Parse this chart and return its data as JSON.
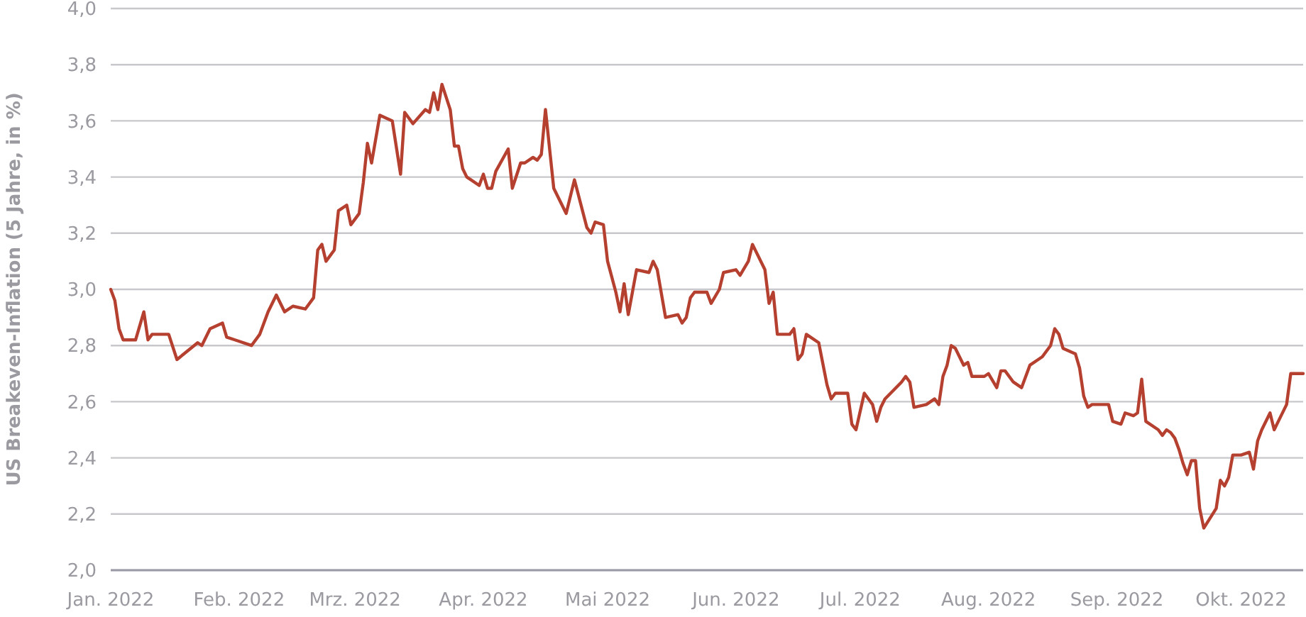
{
  "chart_data": {
    "type": "line",
    "ylabel": "US Breakeven-Inflation (5 Jahre, in %)",
    "grid": "y",
    "marker": "none",
    "line_style": "solid",
    "xlim": [
      "2022-01-01",
      "2022-10-16"
    ],
    "xticks": [
      {
        "value": "2022-01-01",
        "label": "Jan. 2022"
      },
      {
        "value": "2022-02-01",
        "label": "Feb. 2022"
      },
      {
        "value": "2022-03-01",
        "label": "Mrz. 2022"
      },
      {
        "value": "2022-04-01",
        "label": "Apr. 2022"
      },
      {
        "value": "2022-05-01",
        "label": "Mai 2022"
      },
      {
        "value": "2022-06-01",
        "label": "Jun. 2022"
      },
      {
        "value": "2022-07-01",
        "label": "Jul. 2022"
      },
      {
        "value": "2022-08-01",
        "label": "Aug. 2022"
      },
      {
        "value": "2022-09-01",
        "label": "Sep. 2022"
      },
      {
        "value": "2022-10-01",
        "label": "Okt. 2022"
      }
    ],
    "ylim": [
      2,
      4
    ],
    "yticks": [
      {
        "value": 2,
        "label": "2,0"
      },
      {
        "value": 2.2,
        "label": "2,2"
      },
      {
        "value": 2.4,
        "label": "2,4"
      },
      {
        "value": 2.6,
        "label": "2,6"
      },
      {
        "value": 2.8,
        "label": "2,8"
      },
      {
        "value": 3,
        "label": "3,0"
      },
      {
        "value": 3.2,
        "label": "3,2"
      },
      {
        "value": 3.4,
        "label": "3,4"
      },
      {
        "value": 3.6,
        "label": "3,6"
      },
      {
        "value": 3.8,
        "label": "3,8"
      },
      {
        "value": 4,
        "label": "4,0"
      }
    ],
    "x": [
      "2022-01-01",
      "2022-01-02",
      "2022-01-03",
      "2022-01-04",
      "2022-01-07",
      "2022-01-09",
      "2022-01-10",
      "2022-01-11",
      "2022-01-15",
      "2022-01-17",
      "2022-01-22",
      "2022-01-23",
      "2022-01-25",
      "2022-01-28",
      "2022-01-29",
      "2022-01-31",
      "2022-02-04",
      "2022-02-06",
      "2022-02-08",
      "2022-02-10",
      "2022-02-12",
      "2022-02-14",
      "2022-02-17",
      "2022-02-19",
      "2022-02-20",
      "2022-02-21",
      "2022-02-22",
      "2022-02-24",
      "2022-02-25",
      "2022-02-27",
      "2022-02-28",
      "2022-03-02",
      "2022-03-03",
      "2022-03-04",
      "2022-03-05",
      "2022-03-07",
      "2022-03-10",
      "2022-03-12",
      "2022-03-13",
      "2022-03-15",
      "2022-03-18",
      "2022-03-19",
      "2022-03-20",
      "2022-03-21",
      "2022-03-22",
      "2022-03-24",
      "2022-03-25",
      "2022-03-26",
      "2022-03-27",
      "2022-03-28",
      "2022-03-31",
      "2022-04-01",
      "2022-04-02",
      "2022-04-03",
      "2022-04-04",
      "2022-04-07",
      "2022-04-08",
      "2022-04-10",
      "2022-04-11",
      "2022-04-13",
      "2022-04-14",
      "2022-04-15",
      "2022-04-16",
      "2022-04-18",
      "2022-04-21",
      "2022-04-23",
      "2022-04-26",
      "2022-04-27",
      "2022-04-28",
      "2022-04-30",
      "2022-05-01",
      "2022-05-03",
      "2022-05-04",
      "2022-05-05",
      "2022-05-06",
      "2022-05-08",
      "2022-05-11",
      "2022-05-12",
      "2022-05-13",
      "2022-05-15",
      "2022-05-18",
      "2022-05-19",
      "2022-05-20",
      "2022-05-21",
      "2022-05-22",
      "2022-05-25",
      "2022-05-26",
      "2022-05-28",
      "2022-05-29",
      "2022-06-01",
      "2022-06-02",
      "2022-06-04",
      "2022-06-05",
      "2022-06-08",
      "2022-06-09",
      "2022-06-10",
      "2022-06-11",
      "2022-06-14",
      "2022-06-15",
      "2022-06-16",
      "2022-06-17",
      "2022-06-18",
      "2022-06-21",
      "2022-06-23",
      "2022-06-24",
      "2022-06-25",
      "2022-06-28",
      "2022-06-29",
      "2022-06-30",
      "2022-07-02",
      "2022-07-04",
      "2022-07-05",
      "2022-07-06",
      "2022-07-07",
      "2022-07-11",
      "2022-07-12",
      "2022-07-13",
      "2022-07-14",
      "2022-07-17",
      "2022-07-19",
      "2022-07-20",
      "2022-07-21",
      "2022-07-22",
      "2022-07-23",
      "2022-07-24",
      "2022-07-26",
      "2022-07-27",
      "2022-07-28",
      "2022-07-31",
      "2022-08-01",
      "2022-08-03",
      "2022-08-04",
      "2022-08-05",
      "2022-08-07",
      "2022-08-09",
      "2022-08-11",
      "2022-08-13",
      "2022-08-14",
      "2022-08-16",
      "2022-08-17",
      "2022-08-18",
      "2022-08-19",
      "2022-08-22",
      "2022-08-23",
      "2022-08-24",
      "2022-08-25",
      "2022-08-26",
      "2022-08-30",
      "2022-08-31",
      "2022-09-02",
      "2022-09-03",
      "2022-09-05",
      "2022-09-06",
      "2022-09-07",
      "2022-09-08",
      "2022-09-11",
      "2022-09-12",
      "2022-09-13",
      "2022-09-14",
      "2022-09-15",
      "2022-09-16",
      "2022-09-17",
      "2022-09-18",
      "2022-09-19",
      "2022-09-20",
      "2022-09-21",
      "2022-09-22",
      "2022-09-25",
      "2022-09-26",
      "2022-09-27",
      "2022-09-28",
      "2022-09-29",
      "2022-10-01",
      "2022-10-03",
      "2022-10-04",
      "2022-10-05",
      "2022-10-06",
      "2022-10-08",
      "2022-10-09",
      "2022-10-10",
      "2022-10-12",
      "2022-10-13",
      "2022-10-16"
    ],
    "series": [
      {
        "color": "#b5402f",
        "values": [
          3.0,
          2.96,
          2.86,
          2.82,
          2.82,
          2.92,
          2.82,
          2.84,
          2.84,
          2.75,
          2.81,
          2.8,
          2.86,
          2.88,
          2.83,
          2.82,
          2.8,
          2.84,
          2.92,
          2.98,
          2.92,
          2.94,
          2.93,
          2.97,
          3.14,
          3.16,
          3.1,
          3.14,
          3.28,
          3.3,
          3.23,
          3.27,
          3.38,
          3.52,
          3.45,
          3.62,
          3.6,
          3.41,
          3.63,
          3.59,
          3.64,
          3.63,
          3.7,
          3.64,
          3.73,
          3.64,
          3.51,
          3.51,
          3.43,
          3.4,
          3.37,
          3.41,
          3.36,
          3.36,
          3.42,
          3.5,
          3.36,
          3.45,
          3.45,
          3.47,
          3.46,
          3.48,
          3.64,
          3.36,
          3.27,
          3.39,
          3.22,
          3.2,
          3.24,
          3.23,
          3.1,
          2.99,
          2.92,
          3.02,
          2.91,
          3.07,
          3.06,
          3.1,
          3.07,
          2.9,
          2.91,
          2.88,
          2.9,
          2.97,
          2.99,
          2.99,
          2.95,
          3.0,
          3.06,
          3.07,
          3.05,
          3.1,
          3.16,
          3.07,
          2.95,
          2.99,
          2.84,
          2.84,
          2.86,
          2.75,
          2.77,
          2.84,
          2.81,
          2.66,
          2.61,
          2.63,
          2.63,
          2.52,
          2.5,
          2.63,
          2.59,
          2.53,
          2.58,
          2.61,
          2.67,
          2.69,
          2.67,
          2.58,
          2.59,
          2.61,
          2.59,
          2.69,
          2.73,
          2.8,
          2.79,
          2.73,
          2.74,
          2.69,
          2.69,
          2.7,
          2.65,
          2.71,
          2.71,
          2.67,
          2.65,
          2.73,
          2.75,
          2.76,
          2.8,
          2.86,
          2.84,
          2.79,
          2.77,
          2.72,
          2.62,
          2.58,
          2.59,
          2.59,
          2.53,
          2.52,
          2.56,
          2.55,
          2.56,
          2.68,
          2.53,
          2.5,
          2.48,
          2.5,
          2.49,
          2.47,
          2.43,
          2.38,
          2.34,
          2.39,
          2.39,
          2.22,
          2.15,
          2.22,
          2.32,
          2.3,
          2.33,
          2.41,
          2.41,
          2.42,
          2.36,
          2.46,
          2.5,
          2.56,
          2.5,
          2.53,
          2.59,
          2.7,
          2.7
        ]
      }
    ]
  }
}
